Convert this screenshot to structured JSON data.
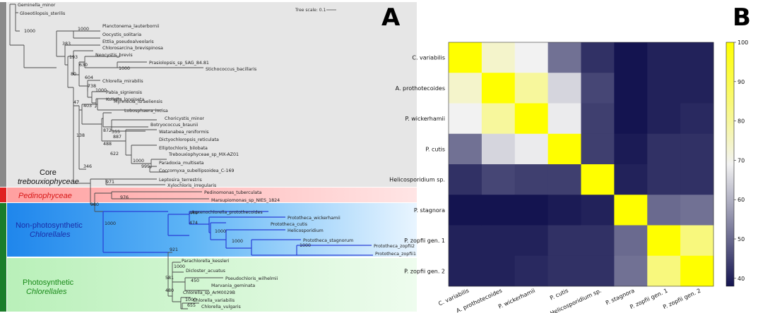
{
  "panel_a": {
    "letter": "A",
    "tree_scale": "Tree scale: 0.1",
    "groups": {
      "core": {
        "line1": "Core",
        "line2": "trebouxiophyceae",
        "color": "#e4e4e4"
      },
      "pedino": {
        "line1": "Pedinophyceae",
        "color": "#ffb6b6"
      },
      "nonphoto": {
        "line1": "Non-photosynthetic",
        "line2": "Chlorellales",
        "color": "#2b8ff0"
      },
      "photo": {
        "line1": "Photosynthetic",
        "line2": "Chlorellales",
        "color": "#c9f5c9"
      }
    },
    "taxa": {
      "t1": "Geminella_minor",
      "t2": "Gloeotilopsis_sterilis",
      "t3": "Planctonema_lauterbornii",
      "t4": "Oocystis_solitaria",
      "t5": "Ettlia_pseudoalveolaris",
      "t6": "Chlorosarcina_brevispinosa",
      "t7": "Neocystis_brevis",
      "t8": "Prasiolopsis_sp_SAG_84.81",
      "t9": "Stichococcus_bacillaris",
      "t10": "Chlorella_mirabilis",
      "t11": "Pabia_signiensis",
      "t12": "Koliella_longiseta",
      "t13": "Myrmecia_israeliensis",
      "t14": "Lobosphaera_incisa",
      "t15": "Choricystis_minor",
      "t16": "Botryococcus_braunii",
      "t17": "Watanabea_reniformis",
      "t18": "Dictyochloropsis_reticulata",
      "t19": "Elliptochloris_bilobata",
      "t20": "Trebouxiophyceae_sp_MX-AZ01",
      "t21": "Paradoxia_multiseta",
      "t22": "Coccomyxa_subellipsoidea_C-169",
      "t23": "Leptosira_terrestris",
      "t24": "Xylochloris_irregularis",
      "t25": "Pedinomonas_tuberculata",
      "t26": "Marsupiomonas_sp_NIES_1824",
      "t27": "Auxenochlorella_protothecoides",
      "t28": "Prototheca_wickerhamii",
      "t29": "Prototheca_cutis",
      "t30": "Helicosporidium",
      "t31": "Prototheca_stagnorum",
      "t32": "Prototheca_zopfii2",
      "t33": "Prototheca_zopfii1",
      "t34": "Parachlorella_kessleri",
      "t35": "Dicloster_acuatus",
      "t36": "Pseudochloris_wilhelmii",
      "t37": "Marvania_geminata",
      "t38": "Chlorella_sp_ArM0029B",
      "t39": "Chlorella_variabilis",
      "t40": "Chlorella_vulgaris"
    },
    "bootstrap": {
      "b1": "1000",
      "b2": "1000",
      "b3": "383",
      "b4": "193",
      "b5": "630",
      "b6": "1000",
      "b7": "80",
      "b8": "604",
      "b9": "738",
      "b10": "1000",
      "b11": "47",
      "b12": "403",
      "b13": "872",
      "b14": "355",
      "b15": "887",
      "b16": "138",
      "b17": "488",
      "b18": "622",
      "b19": "1000",
      "b20": "999",
      "b21": "346",
      "b22": "971",
      "b23": "976",
      "b24": "980",
      "b25": "1000",
      "b26": "449",
      "b27": "474",
      "b28": "1000",
      "b29": "1000",
      "b30": "1000",
      "b31": "921",
      "b32": "1000",
      "b33": "450",
      "b34": "581",
      "b35": "480",
      "b36": "1000",
      "b37": "655"
    }
  },
  "panel_b": {
    "letter": "B",
    "colors": {
      "low": "#141450",
      "mid": "#f2f2f2",
      "high": "#ffff00"
    },
    "labels": [
      "C. variabilis",
      "A. prothotecoides",
      "P. wickerhamii",
      "P. cutis",
      "Helicosporidium sp.",
      "P. stagnora",
      "P. zopfii gen. 1",
      "P. zopfii gen. 2"
    ],
    "matrix": [
      [
        100,
        74,
        69,
        51,
        42,
        38,
        40,
        40
      ],
      [
        74,
        100,
        80,
        65,
        45,
        38,
        40,
        40
      ],
      [
        69,
        80,
        100,
        68,
        44,
        38,
        40,
        41
      ],
      [
        51,
        65,
        68,
        100,
        44,
        39,
        42,
        42
      ],
      [
        42,
        45,
        44,
        44,
        100,
        40,
        42,
        42
      ],
      [
        38,
        38,
        38,
        39,
        40,
        100,
        50,
        51
      ],
      [
        40,
        40,
        40,
        42,
        42,
        50,
        100,
        84
      ],
      [
        40,
        40,
        41,
        42,
        42,
        51,
        84,
        100
      ]
    ],
    "colorbar": {
      "min": 38,
      "max": 100,
      "ticks": [
        "40",
        "50",
        "60",
        "70",
        "80",
        "90",
        "100"
      ]
    }
  }
}
